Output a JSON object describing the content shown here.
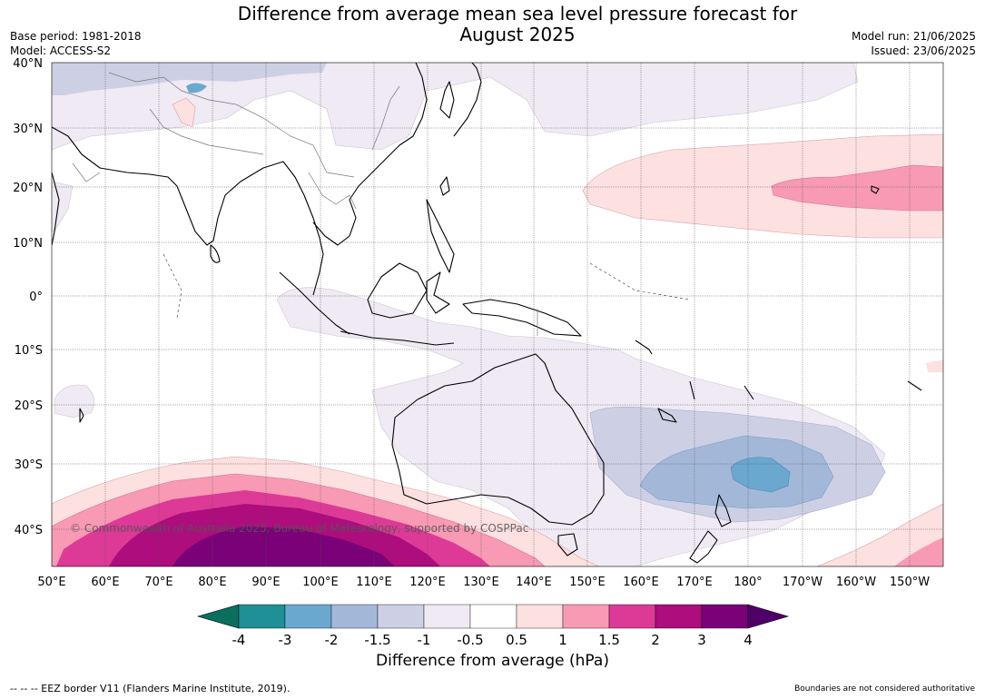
{
  "title_line1": "Difference from average mean sea level pressure forecast for",
  "title_line2": "August 2025",
  "base_period": "Base period: 1981-2018",
  "model": "Model: ACCESS-S2",
  "model_run": "Model run: 21/06/2025",
  "issued": "Issued: 23/06/2025",
  "copyright": "© Commonwealth of Australia 2025, Bureau of Meteorology, supported by COSPPac",
  "lat_labels": [
    "40°N",
    "30°N",
    "20°N",
    "10°N",
    "0°",
    "10°S",
    "20°S",
    "30°S",
    "40°S"
  ],
  "lon_labels": [
    "50°E",
    "60°E",
    "70°E",
    "80°E",
    "90°E",
    "100°E",
    "110°E",
    "120°E",
    "130°E",
    "140°E",
    "150°E",
    "160°E",
    "170°E",
    "180°",
    "170°W",
    "160°W",
    "150°W"
  ],
  "colorbar": {
    "ticks": [
      "-4",
      "-3",
      "-2",
      "-1.5",
      "-1",
      "-0.5",
      "0.5",
      "1",
      "1.5",
      "2",
      "3",
      "4"
    ],
    "colors": [
      "#0b6f5e",
      "#1e9096",
      "#6aa8d0",
      "#a3b8d8",
      "#cdd0e4",
      "#efeaf3",
      "#ffffff",
      "#fde0e0",
      "#f89ab4",
      "#dc3a96",
      "#ad0d7d",
      "#7a0177",
      "#4f0068"
    ],
    "label": "Difference from average (hPa)"
  },
  "legend_eez": "--  --  -- EEZ border V11 (Flanders Marine Institute, 2019).",
  "boundaries_note": "Boundaries are not considered authoritative"
}
